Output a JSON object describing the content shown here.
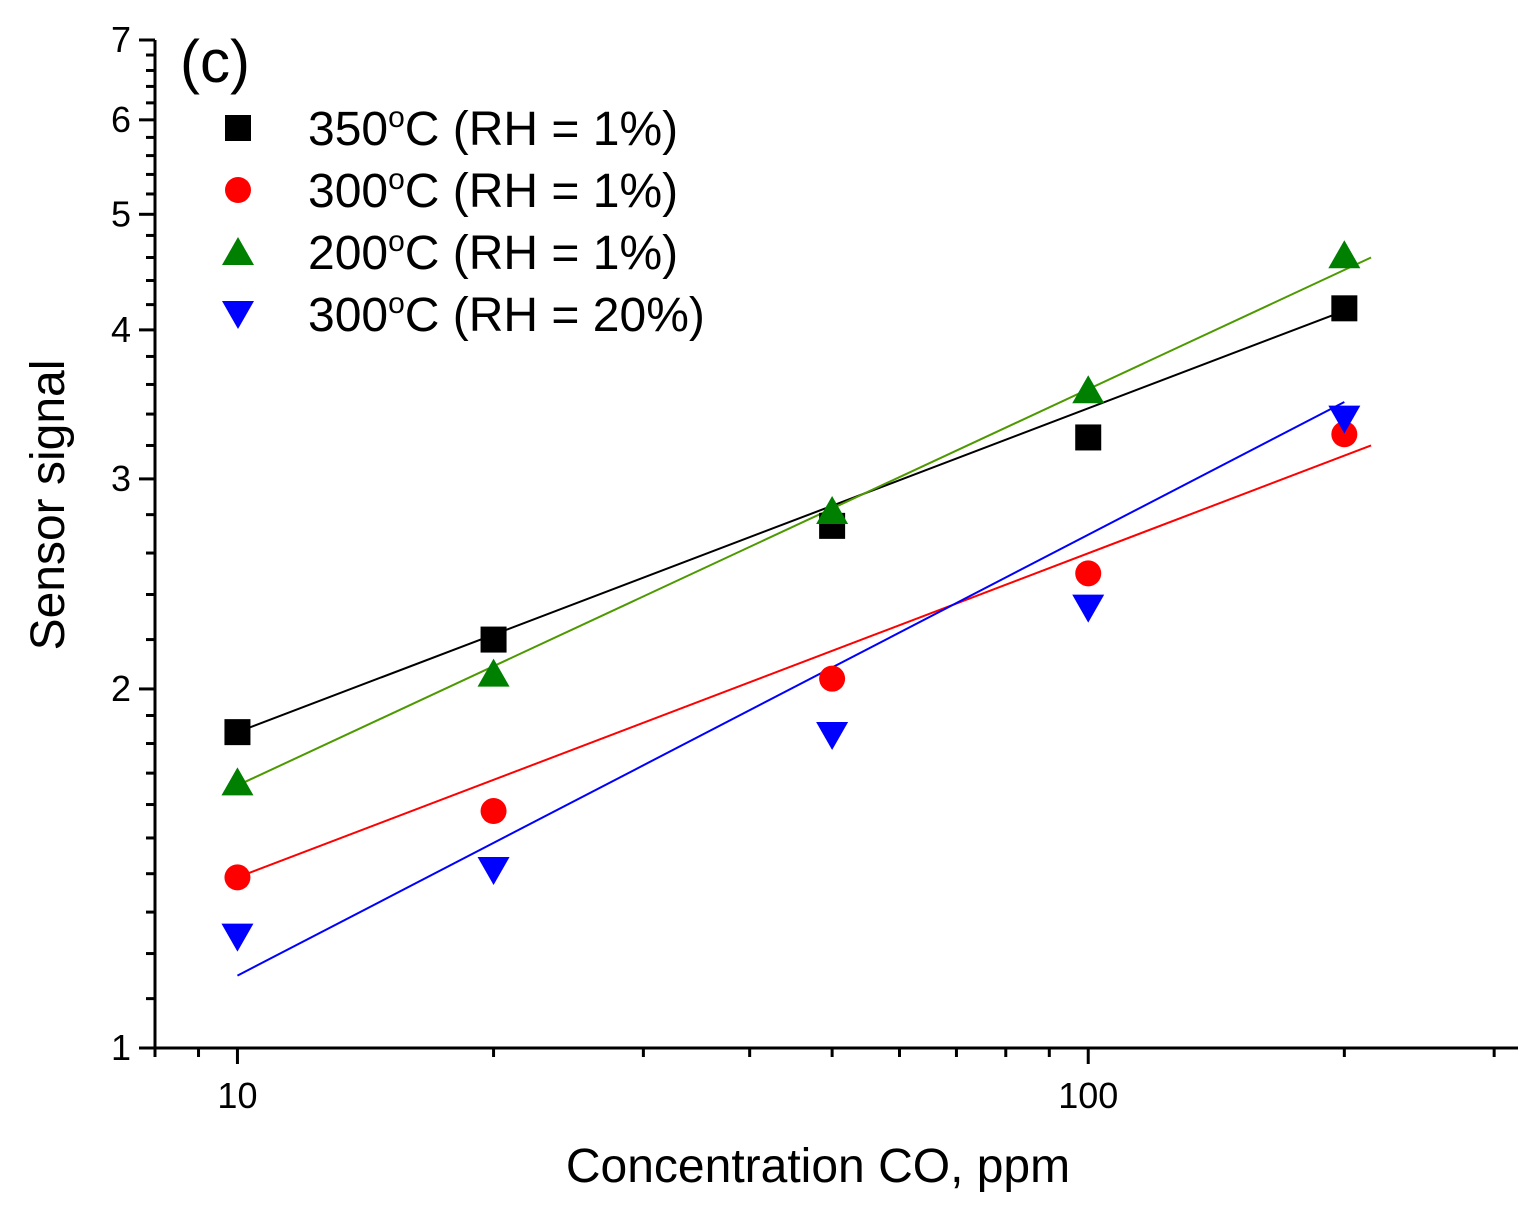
{
  "chart_data": {
    "type": "scatter",
    "panel_label": "(c)",
    "xlabel": "Concentration CO, ppm",
    "ylabel": "Sensor signal",
    "xscale": "log",
    "yscale": "log",
    "xlim": [
      8,
      320
    ],
    "ylim": [
      1,
      7
    ],
    "x_tick_labels": [
      {
        "value": 10,
        "label": "10"
      },
      {
        "value": 100,
        "label": "100"
      }
    ],
    "y_tick_labels": [
      {
        "value": 1,
        "label": "1"
      },
      {
        "value": 2,
        "label": "2"
      },
      {
        "value": 3,
        "label": "3"
      },
      {
        "value": 4,
        "label": "4"
      },
      {
        "value": 5,
        "label": "5"
      },
      {
        "value": 6,
        "label": "6"
      },
      {
        "value": 7,
        "label": "7"
      }
    ],
    "legend_position": "top-left",
    "series": [
      {
        "name": "350",
        "label_sup": "o",
        "label_rest": "C (RH = 1%)",
        "marker": "square",
        "color": "#000000",
        "fit_color": "#000000",
        "x": [
          10,
          20,
          50,
          100,
          200
        ],
        "values": [
          1.84,
          2.2,
          2.74,
          3.25,
          4.17
        ],
        "fit": {
          "x": [
            10,
            200
          ],
          "y": [
            1.84,
            4.15
          ]
        }
      },
      {
        "name": "300",
        "label_sup": "o",
        "label_rest": "C (RH = 1%)",
        "marker": "circle",
        "color": "#ff0000",
        "fit_color": "#ff0000",
        "x": [
          10,
          20,
          50,
          100,
          200
        ],
        "values": [
          1.39,
          1.58,
          2.04,
          2.5,
          3.27
        ],
        "fit": {
          "x": [
            10,
            215
          ],
          "y": [
            1.39,
            3.2
          ]
        }
      },
      {
        "name": "200",
        "label_sup": "o",
        "label_rest": "C (RH = 1%)",
        "marker": "triangle-up",
        "color": "#008000",
        "fit_color": "#4d9900",
        "x": [
          10,
          20,
          50,
          100,
          200
        ],
        "values": [
          1.67,
          2.06,
          2.82,
          3.56,
          4.62
        ],
        "fit": {
          "x": [
            10,
            215
          ],
          "y": [
            1.66,
            4.6
          ]
        }
      },
      {
        "name": "300",
        "label_sup": "o",
        "label_rest": "C (RH = 20%)",
        "marker": "triangle-down",
        "color": "#0000ff",
        "fit_color": "#0000ff",
        "x": [
          10,
          20,
          50,
          100,
          200
        ],
        "values": [
          1.24,
          1.41,
          1.83,
          2.34,
          3.37
        ],
        "fit": {
          "x": [
            10,
            200
          ],
          "y": [
            1.15,
            3.48
          ]
        }
      }
    ]
  }
}
